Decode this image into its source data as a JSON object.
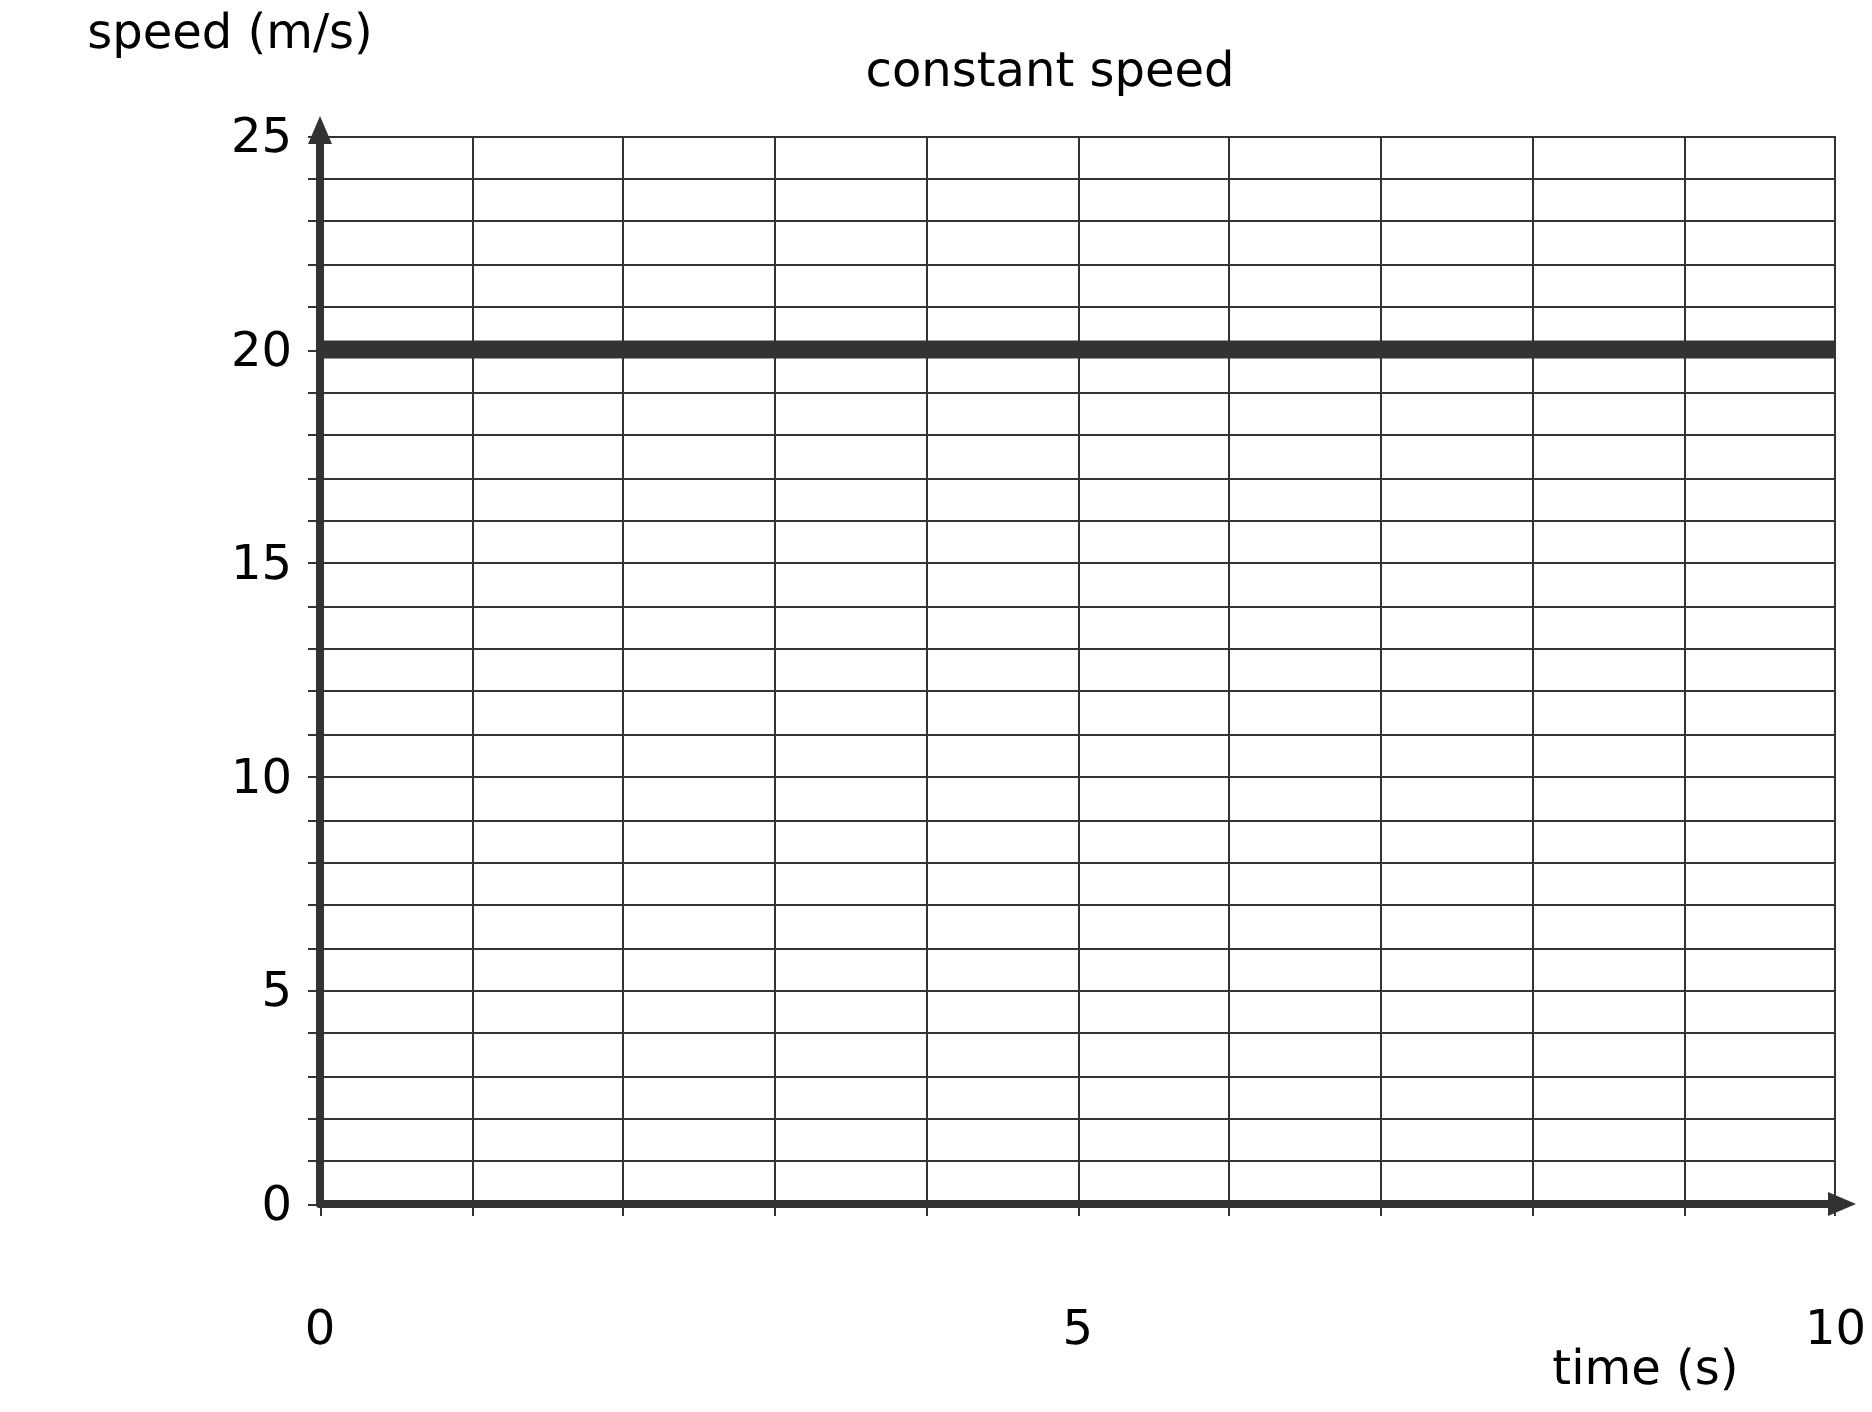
{
  "chart_data": {
    "type": "line",
    "title": "constant speed",
    "xlabel": "time (s)",
    "ylabel": "speed (m/s)",
    "x": [
      0,
      10
    ],
    "series": [
      {
        "color": "#333333",
        "values": [
          20,
          20
        ]
      }
    ],
    "xlim": [
      0,
      10
    ],
    "xticks": [
      0,
      {
        "value": 1,
        "label": null
      },
      {
        "value": 2,
        "label": null
      },
      {
        "value": 3,
        "label": null
      },
      {
        "value": 4,
        "label": null
      },
      5,
      {
        "value": 6,
        "label": null
      },
      {
        "value": 7,
        "label": null
      },
      {
        "value": 8,
        "label": null
      },
      {
        "value": 9,
        "label": null
      },
      10
    ],
    "ylim": [
      0,
      25
    ],
    "yticks": [
      0,
      {
        "value": 1,
        "label": null
      },
      {
        "value": 2,
        "label": null
      },
      {
        "value": 3,
        "label": null
      },
      {
        "value": 4,
        "label": null
      },
      5,
      {
        "value": 6,
        "label": null
      },
      {
        "value": 7,
        "label": null
      },
      {
        "value": 8,
        "label": null
      },
      {
        "value": 9,
        "label": null
      },
      10,
      {
        "value": 11,
        "label": null
      },
      {
        "value": 12,
        "label": null
      },
      {
        "value": 13,
        "label": null
      },
      {
        "value": 14,
        "label": null
      },
      15,
      {
        "value": 16,
        "label": null
      },
      {
        "value": 17,
        "label": null
      },
      {
        "value": 18,
        "label": null
      },
      {
        "value": 19,
        "label": null
      },
      20,
      {
        "value": 21,
        "label": null
      },
      {
        "value": 22,
        "label": null
      },
      {
        "value": 23,
        "label": null
      },
      {
        "value": 24,
        "label": null
      },
      25
    ],
    "grid": true,
    "marker": "none",
    "line_style": "solid"
  }
}
